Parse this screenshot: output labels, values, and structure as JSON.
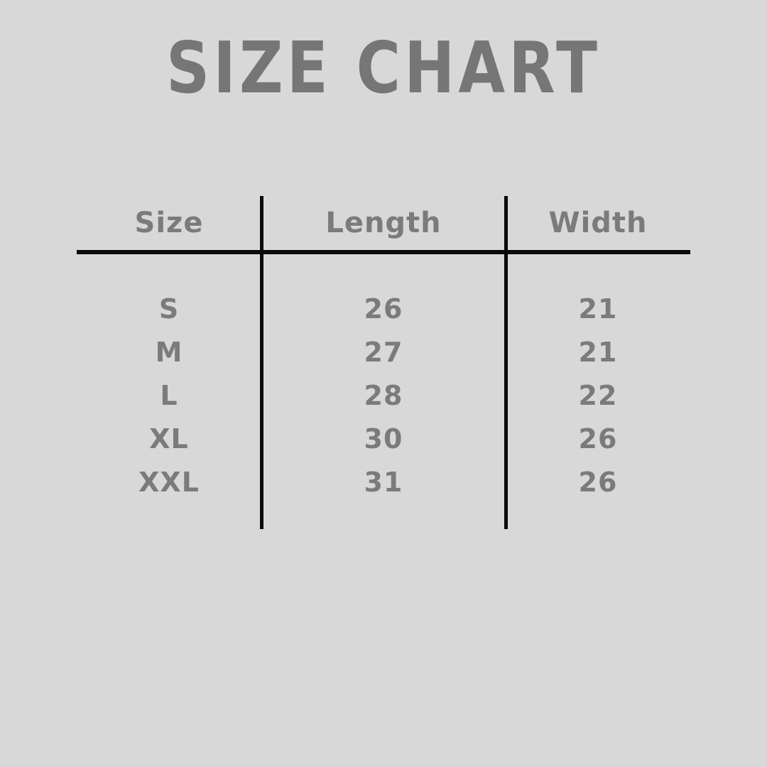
{
  "page": {
    "title": "SIZE CHART"
  },
  "colors": {
    "background": "#d8d8d8",
    "title_gray": "#767676",
    "text_gray": "#7b7b7b",
    "line_black": "#0a0a0a"
  },
  "chart_data": {
    "type": "table",
    "title": "SIZE CHART",
    "columns": [
      "Size",
      "Length",
      "Width"
    ],
    "rows": [
      [
        "S",
        "26",
        "21"
      ],
      [
        "M",
        "27",
        "21"
      ],
      [
        "L",
        "28",
        "22"
      ],
      [
        "XL",
        "30",
        "26"
      ],
      [
        "XXL",
        "31",
        "26"
      ]
    ],
    "layout_hints": {
      "column_dividers": "vertical black lines between the 3 columns",
      "header_divider": "horizontal black line under header row",
      "grid": "partial (no outer border, no row lines)"
    }
  },
  "table": {
    "headers": [
      "Size",
      "Length",
      "Width"
    ],
    "rows": [
      {
        "size": "S",
        "length": "26",
        "width": "21"
      },
      {
        "size": "M",
        "length": "27",
        "width": "21"
      },
      {
        "size": "L",
        "length": "28",
        "width": "22"
      },
      {
        "size": "XL",
        "length": "30",
        "width": "26"
      },
      {
        "size": "XXL",
        "length": "31",
        "width": "26"
      }
    ]
  }
}
